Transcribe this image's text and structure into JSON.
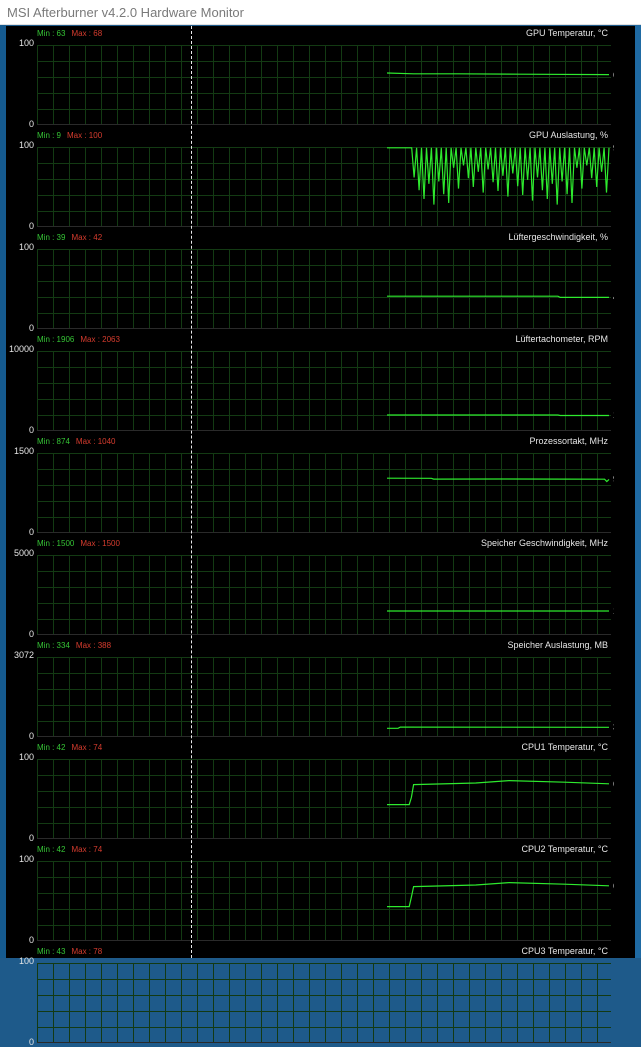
{
  "window": {
    "title": "MSI Afterburner v4.2.0 Hardware Monitor"
  },
  "colors": {
    "trace": "#2eea2e",
    "grid": "#133a13",
    "min": "#35c435",
    "max": "#d63c2e",
    "background": "#000000"
  },
  "panels": [
    {
      "min": "Min : 63",
      "max": "Max : 68",
      "title": "GPU Temperatur, °C",
      "ymax": "100",
      "ymin": "0",
      "current": "63",
      "range": [
        0,
        100
      ],
      "trace": [
        [
          0.0,
          65
        ],
        [
          0.12,
          64
        ],
        [
          0.32,
          64
        ],
        [
          0.6,
          63.5
        ],
        [
          1.0,
          63
        ]
      ]
    },
    {
      "min": "Min : 9",
      "max": "Max : 100",
      "title": "GPU Auslastung, %",
      "ymax": "100",
      "ymin": "0",
      "current": "99",
      "range": [
        0,
        100
      ],
      "spiky": true,
      "spikeMin": [
        60,
        55,
        10,
        40,
        70,
        30,
        8,
        50,
        5,
        25
      ],
      "trace": [
        [
          0.0,
          99
        ],
        [
          1.0,
          99
        ]
      ]
    },
    {
      "min": "Min : 39",
      "max": "Max : 42",
      "title": "Lüftergeschwindigkeit, %",
      "ymax": "100",
      "ymin": "0",
      "current": "40",
      "range": [
        0,
        100
      ],
      "trace": [
        [
          0.0,
          41
        ],
        [
          0.77,
          41
        ],
        [
          0.78,
          39.5
        ],
        [
          1.0,
          39.5
        ]
      ]
    },
    {
      "min": "Min : 1906",
      "max": "Max : 2063",
      "title": "Lüftertachometer, RPM",
      "ymax": "10000",
      "ymin": "0",
      "current": "1940",
      "range": [
        0,
        10000
      ],
      "trace": [
        [
          0.0,
          2000
        ],
        [
          0.77,
          2000
        ],
        [
          0.78,
          1940
        ],
        [
          1.0,
          1940
        ]
      ]
    },
    {
      "min": "Min : 874",
      "max": "Max : 1040",
      "title": "Prozessortakt, MHz",
      "ymax": "1500",
      "ymin": "0",
      "current": "993",
      "range": [
        0,
        1500
      ],
      "trace": [
        [
          0.0,
          1028
        ],
        [
          0.2,
          1025
        ],
        [
          0.21,
          1010
        ],
        [
          0.5,
          1012
        ],
        [
          0.8,
          1010
        ],
        [
          0.98,
          1008
        ],
        [
          0.99,
          965
        ],
        [
          1.0,
          1005
        ]
      ]
    },
    {
      "min": "Min : 1500",
      "max": "Max : 1500",
      "title": "Speicher Geschwindigkeit, MHz",
      "ymax": "5000",
      "ymin": "0",
      "current": "1500",
      "range": [
        0,
        5000
      ],
      "trace": [
        [
          0.0,
          1500
        ],
        [
          1.0,
          1500
        ]
      ]
    },
    {
      "min": "Min : 334",
      "max": "Max : 388",
      "title": "Speicher Auslastung, MB",
      "ymax": "3072",
      "ymin": "0",
      "current": "340",
      "range": [
        0,
        3072
      ],
      "trace": [
        [
          0.0,
          334
        ],
        [
          0.05,
          334
        ],
        [
          0.06,
          380
        ],
        [
          0.5,
          378
        ],
        [
          1.0,
          372
        ]
      ]
    },
    {
      "min": "Min : 42",
      "max": "Max : 74",
      "title": "CPU1 Temperatur, °C",
      "ymax": "100",
      "ymin": "0",
      "current": "68",
      "range": [
        0,
        100
      ],
      "trace": [
        [
          0.0,
          43
        ],
        [
          0.1,
          43
        ],
        [
          0.11,
          52
        ],
        [
          0.12,
          68
        ],
        [
          0.4,
          70
        ],
        [
          0.55,
          73
        ],
        [
          0.8,
          71
        ],
        [
          1.0,
          69
        ]
      ]
    },
    {
      "min": "Min : 42",
      "max": "Max : 74",
      "title": "CPU2 Temperatur, °C",
      "ymax": "100",
      "ymin": "0",
      "current": "68",
      "range": [
        0,
        100
      ],
      "trace": [
        [
          0.0,
          43
        ],
        [
          0.1,
          43
        ],
        [
          0.11,
          55
        ],
        [
          0.12,
          68
        ],
        [
          0.4,
          70
        ],
        [
          0.55,
          73
        ],
        [
          0.8,
          71
        ],
        [
          1.0,
          69
        ]
      ]
    },
    {
      "min": "Min : 43",
      "max": "Max : 78",
      "title": "CPU3 Temperatur, °C",
      "ymax": "100",
      "ymin": "0",
      "current": "",
      "range": [
        0,
        100
      ],
      "trace": []
    }
  ]
}
